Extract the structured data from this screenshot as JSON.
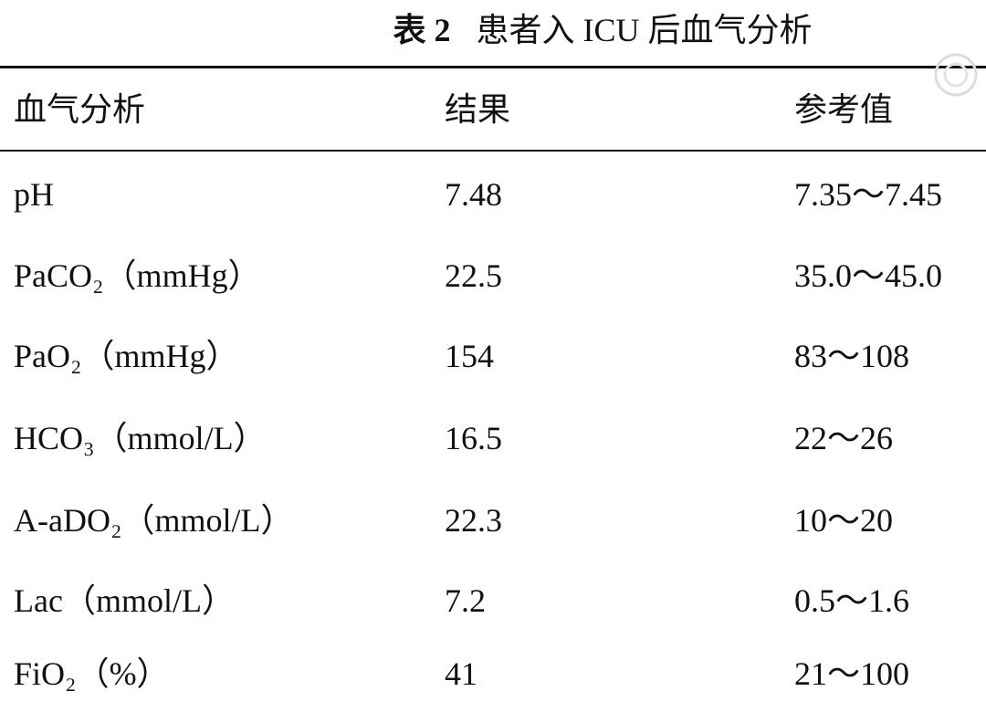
{
  "title": {
    "label": "表 2",
    "text": "患者入 ICU 后血气分析"
  },
  "table": {
    "header": [
      "血气分析",
      "结果",
      "参考值"
    ],
    "rows": [
      [
        "pH",
        "7.48",
        "7.35～7.45"
      ],
      [
        "PaCO₂（mmHg）",
        "22.5",
        "35.0～45.0"
      ],
      [
        "PaO₂（mmHg）",
        "154",
        "83～108"
      ],
      [
        "HCO₃（mmol/L）",
        "16.5",
        "22～26"
      ],
      [
        "A-aDO₂（mmol/L）",
        "22.3",
        "10～20"
      ],
      [
        "Lac（mmol/L）",
        "7.2",
        "0.5～1.6"
      ],
      [
        "FiO₂（%）",
        "41",
        "21～100"
      ]
    ]
  }
}
